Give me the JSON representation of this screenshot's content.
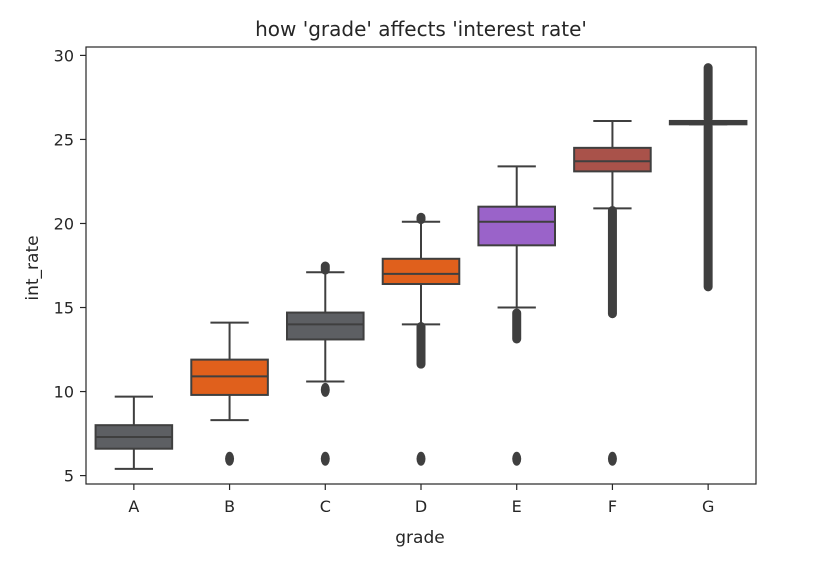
{
  "chart_data": {
    "type": "box",
    "title": "how 'grade' affects 'interest rate'",
    "xlabel": "grade",
    "ylabel": "int_rate",
    "categories": [
      "A",
      "B",
      "C",
      "D",
      "E",
      "F",
      "G"
    ],
    "ylim": [
      4.5,
      30.5
    ],
    "yticks": [
      5,
      10,
      15,
      20,
      25,
      30
    ],
    "grid": false,
    "boxes": [
      {
        "category": "A",
        "whisker_low": 5.4,
        "q1": 6.6,
        "median": 7.3,
        "q3": 8.0,
        "whisker_high": 9.7,
        "color": "#5d5f63",
        "outliers": [],
        "outlier_ranges": []
      },
      {
        "category": "B",
        "whisker_low": 8.3,
        "q1": 9.8,
        "median": 10.9,
        "q3": 11.9,
        "whisker_high": 14.1,
        "color": "#e0601c",
        "outliers": [
          6.0
        ],
        "outlier_ranges": []
      },
      {
        "category": "C",
        "whisker_low": 10.6,
        "q1": 13.1,
        "median": 14.0,
        "q3": 14.7,
        "whisker_high": 17.1,
        "color": "#5d5f63",
        "outliers": [
          6.0,
          10.1
        ],
        "outlier_ranges": [
          [
            17.2,
            17.5
          ]
        ]
      },
      {
        "category": "D",
        "whisker_low": 14.0,
        "q1": 16.4,
        "median": 17.0,
        "q3": 17.9,
        "whisker_high": 20.1,
        "color": "#e0601c",
        "outliers": [
          6.0
        ],
        "outlier_ranges": [
          [
            11.6,
            13.9
          ],
          [
            20.2,
            20.4
          ]
        ]
      },
      {
        "category": "E",
        "whisker_low": 15.0,
        "q1": 18.7,
        "median": 20.1,
        "q3": 21.0,
        "whisker_high": 23.4,
        "color": "#9a63c9",
        "outliers": [
          6.0
        ],
        "outlier_ranges": [
          [
            13.1,
            14.7
          ]
        ]
      },
      {
        "category": "F",
        "whisker_low": 20.9,
        "q1": 23.1,
        "median": 23.7,
        "q3": 24.5,
        "whisker_high": 26.1,
        "color": "#a9524a",
        "outliers": [
          6.0
        ],
        "outlier_ranges": [
          [
            14.6,
            20.8
          ]
        ]
      },
      {
        "category": "G",
        "whisker_low": 25.9,
        "q1": 25.9,
        "median": 26.0,
        "q3": 26.1,
        "whisker_high": 26.1,
        "color": "#5d5f63",
        "outliers": [],
        "outlier_ranges": [
          [
            16.2,
            25.8
          ],
          [
            26.2,
            29.3
          ]
        ]
      }
    ]
  }
}
